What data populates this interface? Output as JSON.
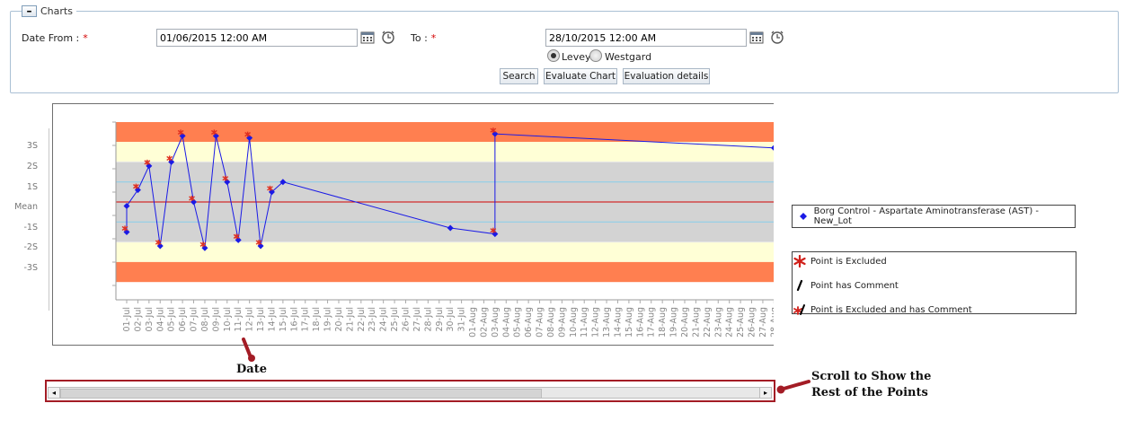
{
  "panel": {
    "collapse_label": "–",
    "title": "Charts"
  },
  "filters": {
    "date_from_label": "Date From :",
    "required_mark": "*",
    "date_from_value": "01/06/2015 12:00 AM",
    "to_label": "To :",
    "to_value": "28/10/2015 12:00 AM",
    "rule_options": [
      {
        "label": "Levey",
        "selected": true
      },
      {
        "label": "Westgard",
        "selected": false
      }
    ]
  },
  "buttons": {
    "search": "Search",
    "evaluate": "Evaluate Chart",
    "details": "Evaluation details"
  },
  "chart": {
    "y_ticks": [
      "3S",
      "2S",
      "1S",
      "Mean",
      "-1S",
      "-2S",
      "-3S"
    ],
    "x_ticks": [
      "01-Jul",
      "02-Jul",
      "03-Jul",
      "04-Jul",
      "05-Jul",
      "06-Jul",
      "07-Jul",
      "08-Jul",
      "09-Jul",
      "10-Jul",
      "11-Jul",
      "12-Jul",
      "13-Jul",
      "14-Jul",
      "15-Jul",
      "16-Jul",
      "17-Jul",
      "18-Jul",
      "19-Jul",
      "20-Jul",
      "21-Jul",
      "22-Jul",
      "23-Jul",
      "24-Jul",
      "25-Jul",
      "26-Jul",
      "27-Jul",
      "28-Jul",
      "29-Jul",
      "30-Jul",
      "31-Jul",
      "01-Aug",
      "02-Aug",
      "03-Aug",
      "04-Aug",
      "05-Aug",
      "06-Aug",
      "07-Aug",
      "08-Aug",
      "09-Aug",
      "10-Aug",
      "11-Aug",
      "12-Aug",
      "13-Aug",
      "14-Aug",
      "15-Aug",
      "16-Aug",
      "17-Aug",
      "18-Aug",
      "19-Aug",
      "20-Aug",
      "21-Aug",
      "22-Aug",
      "23-Aug",
      "24-Aug",
      "25-Aug",
      "26-Aug",
      "27-Aug",
      "28-Aug"
    ],
    "colors": {
      "outer_band": "#ff7f50",
      "mid_band": "#ffffd6",
      "inner_band": "#d3d3d3",
      "mean_line": "#d00000",
      "sd_line": "#87ceeb",
      "series": "#1a1ae6",
      "excluded": "#e03020"
    }
  },
  "chart_data": {
    "type": "line",
    "ylabel": "",
    "y_scale": "standard deviations from mean",
    "ylim": [
      -4,
      4
    ],
    "series": [
      {
        "name": "Borg Control - Aspartate Aminotransferase (AST) - New_Lot",
        "points": [
          {
            "x": "01-Jul",
            "y": -1.5,
            "excluded": true
          },
          {
            "x": "01-Jul",
            "y": -0.2,
            "excluded": false
          },
          {
            "x": "02-Jul",
            "y": 0.6,
            "excluded": true
          },
          {
            "x": "03-Jul",
            "y": 1.8,
            "excluded": true
          },
          {
            "x": "04-Jul",
            "y": -2.2,
            "excluded": true
          },
          {
            "x": "05-Jul",
            "y": 2.0,
            "excluded": true
          },
          {
            "x": "06-Jul",
            "y": 3.3,
            "excluded": true
          },
          {
            "x": "07-Jul",
            "y": 0.0,
            "excluded": true
          },
          {
            "x": "08-Jul",
            "y": -2.3,
            "excluded": true
          },
          {
            "x": "09-Jul",
            "y": 3.3,
            "excluded": true
          },
          {
            "x": "10-Jul",
            "y": 1.0,
            "excluded": true
          },
          {
            "x": "11-Jul",
            "y": -1.9,
            "excluded": true
          },
          {
            "x": "12-Jul",
            "y": 3.2,
            "excluded": true
          },
          {
            "x": "13-Jul",
            "y": -2.2,
            "excluded": true
          },
          {
            "x": "14-Jul",
            "y": 0.5,
            "excluded": true
          },
          {
            "x": "15-Jul",
            "y": 1.0,
            "excluded": false
          },
          {
            "x": "30-Jul",
            "y": -1.3,
            "excluded": false
          },
          {
            "x": "03-Aug",
            "y": -1.6,
            "excluded": true
          },
          {
            "x": "03-Aug",
            "y": 3.4,
            "excluded": true
          },
          {
            "x": "28-Aug",
            "y": 2.7,
            "excluded": false
          }
        ]
      }
    ]
  },
  "series_legend": {
    "label": "Borg Control - Aspartate Aminotransferase (AST) - New_Lot"
  },
  "symbol_legend": {
    "excluded": "Point is Excluded",
    "comment": "Point has Comment",
    "excluded_comment": "Point is Excluded and has Comment"
  },
  "annotations": {
    "date": "Date",
    "scroll_line1": "Scroll to Show the",
    "scroll_line2": "Rest of the Points"
  },
  "scrollbar": {
    "left_arrow": "◂",
    "right_arrow": "▸"
  }
}
